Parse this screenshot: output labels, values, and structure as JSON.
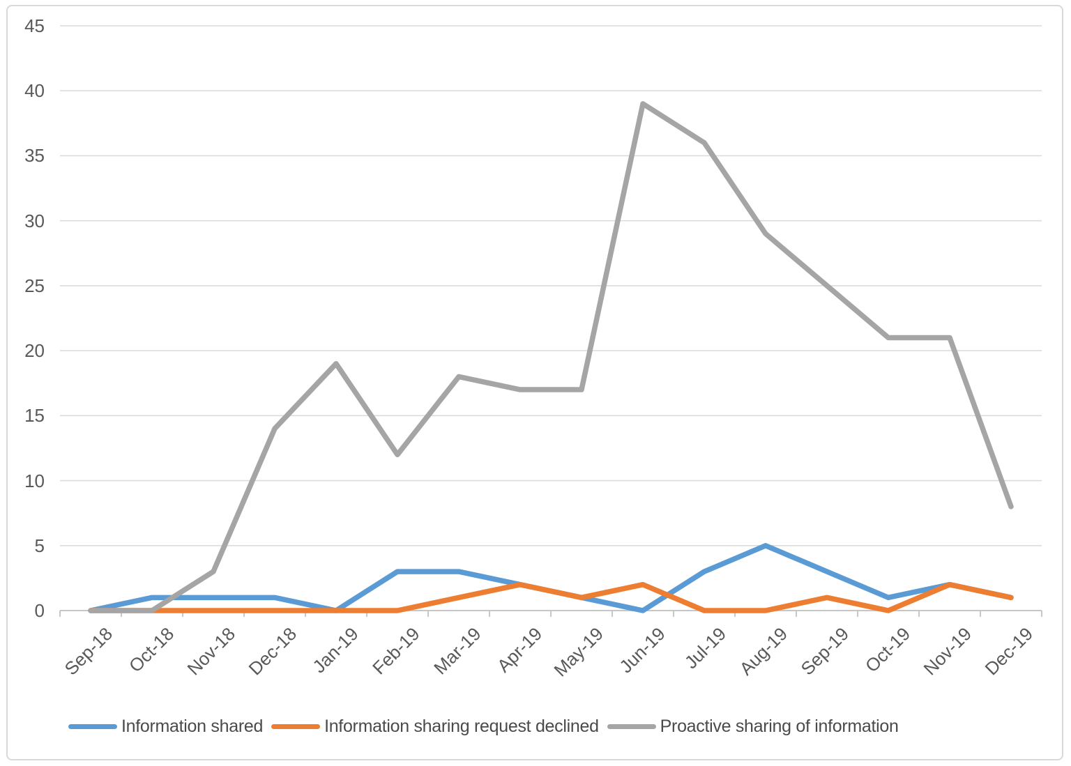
{
  "chart_data": {
    "type": "line",
    "title": "",
    "xlabel": "",
    "ylabel": "",
    "categories": [
      "Sep-18",
      "Oct-18",
      "Nov-18",
      "Dec-18",
      "Jan-19",
      "Feb-19",
      "Mar-19",
      "Apr-19",
      "May-19",
      "Jun-19",
      "Jul-19",
      "Aug-19",
      "Sep-19",
      "Oct-19",
      "Nov-19",
      "Dec-19"
    ],
    "series": [
      {
        "name": "Information shared",
        "color": "#5B9BD5",
        "values": [
          0,
          1,
          1,
          1,
          0,
          3,
          3,
          2,
          1,
          0,
          3,
          5,
          3,
          1,
          2,
          1
        ]
      },
      {
        "name": "Information sharing request declined",
        "color": "#ED7D31",
        "values": [
          0,
          0,
          0,
          0,
          0,
          0,
          1,
          2,
          1,
          2,
          0,
          0,
          1,
          0,
          2,
          1
        ]
      },
      {
        "name": "Proactive sharing of information",
        "color": "#A5A5A5",
        "values": [
          0,
          0,
          3,
          14,
          19,
          12,
          18,
          17,
          17,
          39,
          36,
          29,
          25,
          21,
          21,
          8
        ]
      }
    ],
    "y_ticks": [
      0,
      5,
      10,
      15,
      20,
      25,
      30,
      35,
      40,
      45
    ],
    "ylim": [
      0,
      45
    ],
    "grid": true,
    "legend_position": "bottom"
  },
  "colors": {
    "gridline": "#DCDCDC",
    "axis": "#C6C6C6",
    "label_text": "#595959",
    "border": "#D9D9D9",
    "background": "#FFFFFF"
  }
}
